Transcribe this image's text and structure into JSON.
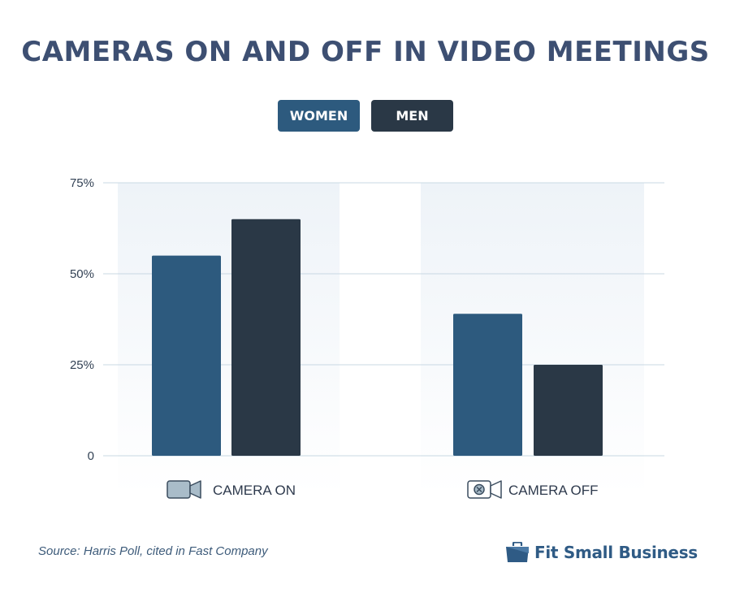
{
  "title": "CAMERAS ON AND OFF IN VIDEO MEETINGS",
  "legend": {
    "women": "WOMEN",
    "men": "MEN"
  },
  "colors": {
    "women": "#2d5a7e",
    "men": "#2a3846",
    "title": "#3d4f72",
    "grid": "#c8d8e3",
    "band": "#eef3f8"
  },
  "chart_data": {
    "type": "bar",
    "categories": [
      "CAMERA ON",
      "CAMERA OFF"
    ],
    "category_icons": [
      "video-camera-icon",
      "video-camera-off-icon"
    ],
    "series": [
      {
        "name": "WOMEN",
        "values": [
          55,
          39
        ]
      },
      {
        "name": "MEN",
        "values": [
          65,
          25
        ]
      }
    ],
    "yticks": [
      "0",
      "25%",
      "50%",
      "75%"
    ],
    "ytick_values": [
      0,
      25,
      50,
      75
    ],
    "ylim": [
      0,
      75
    ],
    "grid": true,
    "legend_position": "top-center"
  },
  "source": "Source: Harris Poll, cited in Fast Company",
  "brand": "Fit Small Business"
}
